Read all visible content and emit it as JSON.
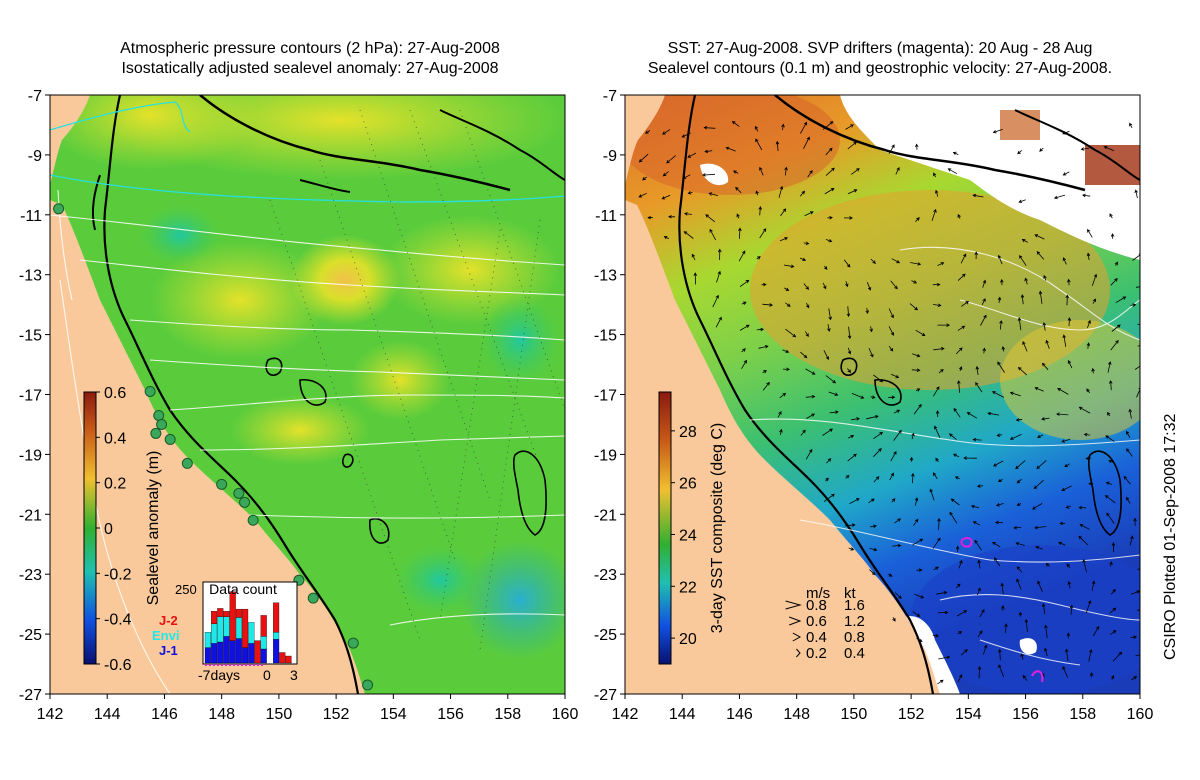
{
  "left_panel": {
    "title_line1": "Atmospheric pressure contours (2 hPa): 27-Aug-2008",
    "title_line2": "Isostatically adjusted sealevel anomaly: 27-Aug-2008",
    "colorbar": {
      "label": "Sealevel anomaly (m)",
      "ticks": [
        "0.6",
        "0.4",
        "0.2",
        "0",
        "-0.2",
        "-0.4",
        "-0.6"
      ],
      "range": [
        -0.6,
        0.6
      ]
    },
    "data_count": {
      "title": "Data count",
      "y_max_label": "250",
      "legend": [
        {
          "name": "J-2",
          "color": "#e81010"
        },
        {
          "name": "Envi",
          "color": "#20e8e8"
        },
        {
          "name": "J-1",
          "color": "#1010e0"
        }
      ],
      "x_labels": [
        "-7days",
        "0",
        "3"
      ],
      "bars": [
        {
          "j1": 0.22,
          "envi": 0.22,
          "j2": 0.0
        },
        {
          "j1": 0.28,
          "envi": 0.28,
          "j2": 0.18
        },
        {
          "j1": 0.3,
          "envi": 0.36,
          "j2": 0.12
        },
        {
          "j1": 0.38,
          "envi": 0.28,
          "j2": 0.08
        },
        {
          "j1": 0.32,
          "envi": 0.0,
          "j2": 0.7
        },
        {
          "j1": 0.35,
          "envi": 0.3,
          "j2": 0.12
        },
        {
          "j1": 0.22,
          "envi": 0.0,
          "j2": 0.55
        },
        {
          "j1": 0.28,
          "envi": 0.3,
          "j2": 0.0
        },
        {
          "j1": 0.0,
          "envi": 0.0,
          "j2": 0.32
        },
        {
          "j1": 0.2,
          "envi": 0.18,
          "j2": 0.3
        },
        {
          "j1": 0.0,
          "envi": 0.0,
          "j2": 0.0
        },
        {
          "j1": 0.34,
          "envi": 0.1,
          "j2": 0.42
        },
        {
          "j1": 0.0,
          "envi": 0.0,
          "j2": 0.15
        },
        {
          "j1": 0.0,
          "envi": 0.0,
          "j2": 0.1
        }
      ]
    }
  },
  "right_panel": {
    "title_line1": "SST: 27-Aug-2008. SVP drifters (magenta): 20 Aug - 28 Aug",
    "title_line2": "Sealevel contours (0.1 m) and geostrophic velocity: 27-Aug-2008.",
    "colorbar": {
      "label": "3-day SST composite (deg C)",
      "ticks": [
        "28",
        "26",
        "24",
        "22",
        "20"
      ],
      "range": [
        19,
        29.5
      ]
    },
    "velocity_key": {
      "header_ms": "m/s",
      "header_kt": "kt",
      "rows": [
        {
          "ms": "0.8",
          "kt": "1.6"
        },
        {
          "ms": "0.6",
          "kt": "1.2"
        },
        {
          "ms": "0.4",
          "kt": "0.8"
        },
        {
          "ms": "0.2",
          "kt": "0.4"
        }
      ]
    }
  },
  "axes": {
    "lon_ticks": [
      "142",
      "144",
      "146",
      "148",
      "150",
      "152",
      "154",
      "156",
      "158",
      "160"
    ],
    "lat_ticks": [
      "-7",
      "-9",
      "-11",
      "-13",
      "-15",
      "-17",
      "-19",
      "-21",
      "-23",
      "-25",
      "-27"
    ],
    "lon_range": [
      142,
      160
    ],
    "lat_range": [
      -27,
      -7
    ]
  },
  "credit": "CSIRO Plotted 01-Sep-2008 17:32",
  "colors": {
    "land": "#f9c99b",
    "coast_line": "#000000",
    "isobath": "#000000",
    "contour_white": "#ffffff",
    "pressure_contour": "#28e0e0",
    "tide_gauge": "#3aa85a",
    "drifter": "#e020e0"
  },
  "tide_gauges": [
    {
      "lon": 142.3,
      "lat": -10.8
    },
    {
      "lon": 145.5,
      "lat": -16.9
    },
    {
      "lon": 145.8,
      "lat": -17.7
    },
    {
      "lon": 145.9,
      "lat": -18.0
    },
    {
      "lon": 145.7,
      "lat": -18.3
    },
    {
      "lon": 146.2,
      "lat": -18.5
    },
    {
      "lon": 146.8,
      "lat": -19.3
    },
    {
      "lon": 148.0,
      "lat": -20.0
    },
    {
      "lon": 148.6,
      "lat": -20.3
    },
    {
      "lon": 148.8,
      "lat": -20.6
    },
    {
      "lon": 149.1,
      "lat": -21.2
    },
    {
      "lon": 150.7,
      "lat": -23.2
    },
    {
      "lon": 151.2,
      "lat": -23.8
    },
    {
      "lon": 152.6,
      "lat": -25.3
    },
    {
      "lon": 153.1,
      "lat": -26.7
    }
  ]
}
